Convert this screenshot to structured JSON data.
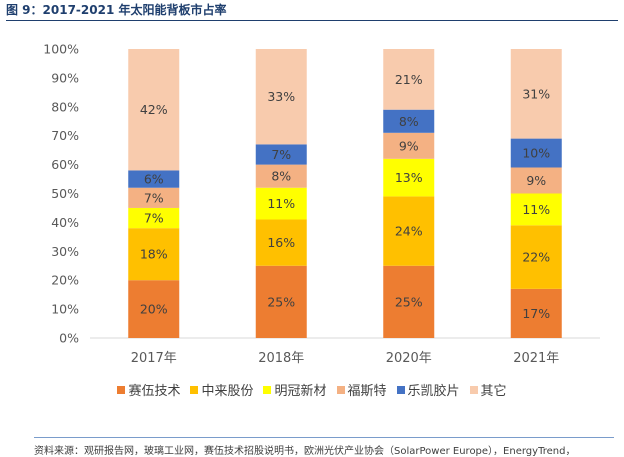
{
  "header": {
    "title": "图 9：2017-2021 年太阳能背板市占率"
  },
  "chart_data": {
    "type": "bar",
    "stacked": true,
    "categories": [
      "2017年",
      "2018年",
      "2020年",
      "2021年"
    ],
    "series": [
      {
        "name": "赛伍技术",
        "color": "#ed7d31",
        "values": [
          20,
          25,
          25,
          17
        ]
      },
      {
        "name": "中来股份",
        "color": "#ffc000",
        "values": [
          18,
          16,
          24,
          22
        ]
      },
      {
        "name": "明冠新材",
        "color": "#ffff00",
        "values": [
          7,
          11,
          13,
          11
        ]
      },
      {
        "name": "福斯特",
        "color": "#f4b183",
        "values": [
          7,
          8,
          9,
          9
        ]
      },
      {
        "name": "乐凯胶片",
        "color": "#4472c4",
        "values": [
          6,
          7,
          8,
          10
        ]
      },
      {
        "name": "其它",
        "color": "#f8cbad",
        "values": [
          42,
          33,
          21,
          31
        ]
      }
    ],
    "ylim": [
      0,
      100
    ],
    "yticks": [
      "0%",
      "10%",
      "20%",
      "30%",
      "40%",
      "50%",
      "60%",
      "70%",
      "80%",
      "90%",
      "100%"
    ],
    "legend_position": "bottom",
    "grid": false
  },
  "footer": {
    "source": "资料来源：观研报告网，玻璃工业网，赛伍技术招股说明书，欧洲光伏产业协会（SolarPower Europe），EnergyTrend，"
  }
}
